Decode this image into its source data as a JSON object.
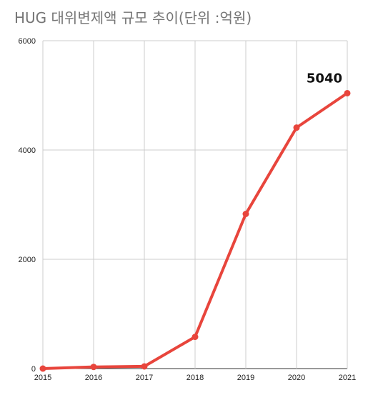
{
  "chart_data": {
    "type": "line",
    "title": "HUG 대위변제액 규모 추이(단위 :억원)",
    "xlabel": "",
    "ylabel": "",
    "x": [
      "2015",
      "2016",
      "2017",
      "2018",
      "2019",
      "2020",
      "2021"
    ],
    "y_ticks": [
      "0",
      "2000",
      "4000",
      "6000"
    ],
    "ylim": [
      0,
      6000
    ],
    "series": [
      {
        "values": [
          0,
          30,
          40,
          580,
          2830,
          4410,
          5040
        ],
        "color": "#e8453c"
      }
    ],
    "annotations": [
      {
        "label": "5040",
        "x": "2021",
        "value": 5040
      }
    ],
    "grid": true,
    "legend": "none"
  }
}
